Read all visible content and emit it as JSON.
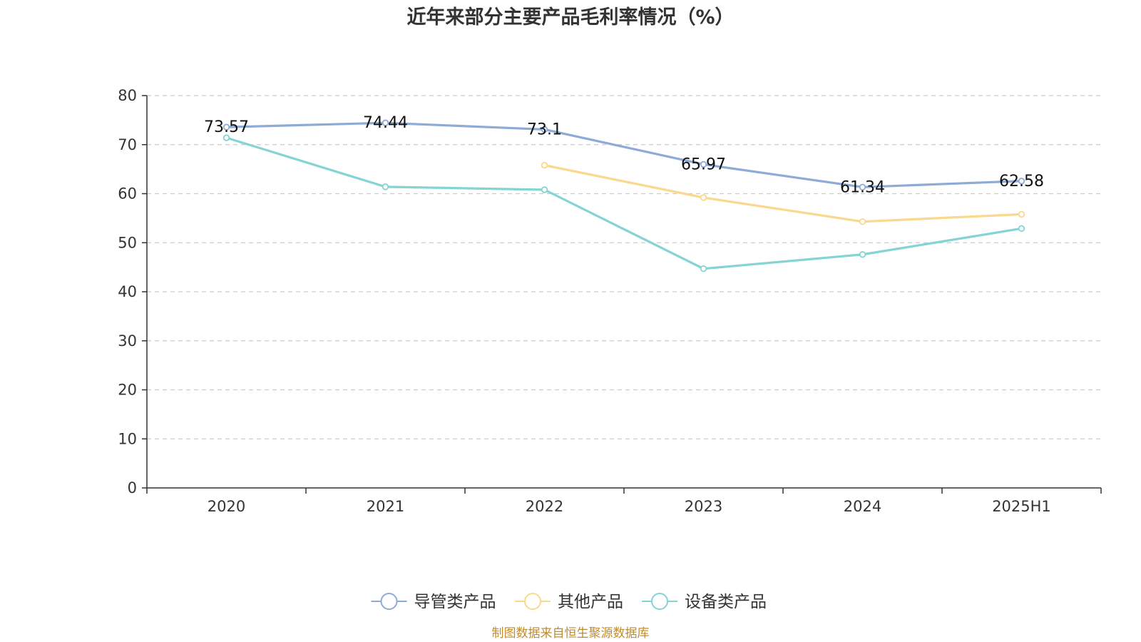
{
  "chart_data": {
    "type": "line",
    "title": "近年来部分主要产品毛利率情况（%）",
    "categories": [
      "2020",
      "2021",
      "2022",
      "2023",
      "2024",
      "2025H1"
    ],
    "ylim": [
      0,
      80
    ],
    "yticks": [
      "0",
      "10",
      "20",
      "30",
      "40",
      "50",
      "60",
      "70",
      "80"
    ],
    "grid": true,
    "legend_position": "bottom",
    "series": [
      {
        "name": "导管类产品",
        "color": "#8eaad6",
        "values": [
          73.57,
          74.44,
          73.1,
          65.97,
          61.34,
          62.58
        ],
        "labels": [
          "73.57",
          "74.44",
          "73.1",
          "65.97",
          "61.34",
          "62.58"
        ]
      },
      {
        "name": "其他产品",
        "color": "#fad88e",
        "values": [
          null,
          null,
          65.8,
          59.2,
          54.3,
          55.8
        ],
        "labels": []
      },
      {
        "name": "设备类产品",
        "color": "#84d4d3",
        "values": [
          71.4,
          61.4,
          60.8,
          44.7,
          47.6,
          52.9
        ],
        "labels": []
      }
    ]
  },
  "source": "制图数据来自恒生聚源数据库"
}
